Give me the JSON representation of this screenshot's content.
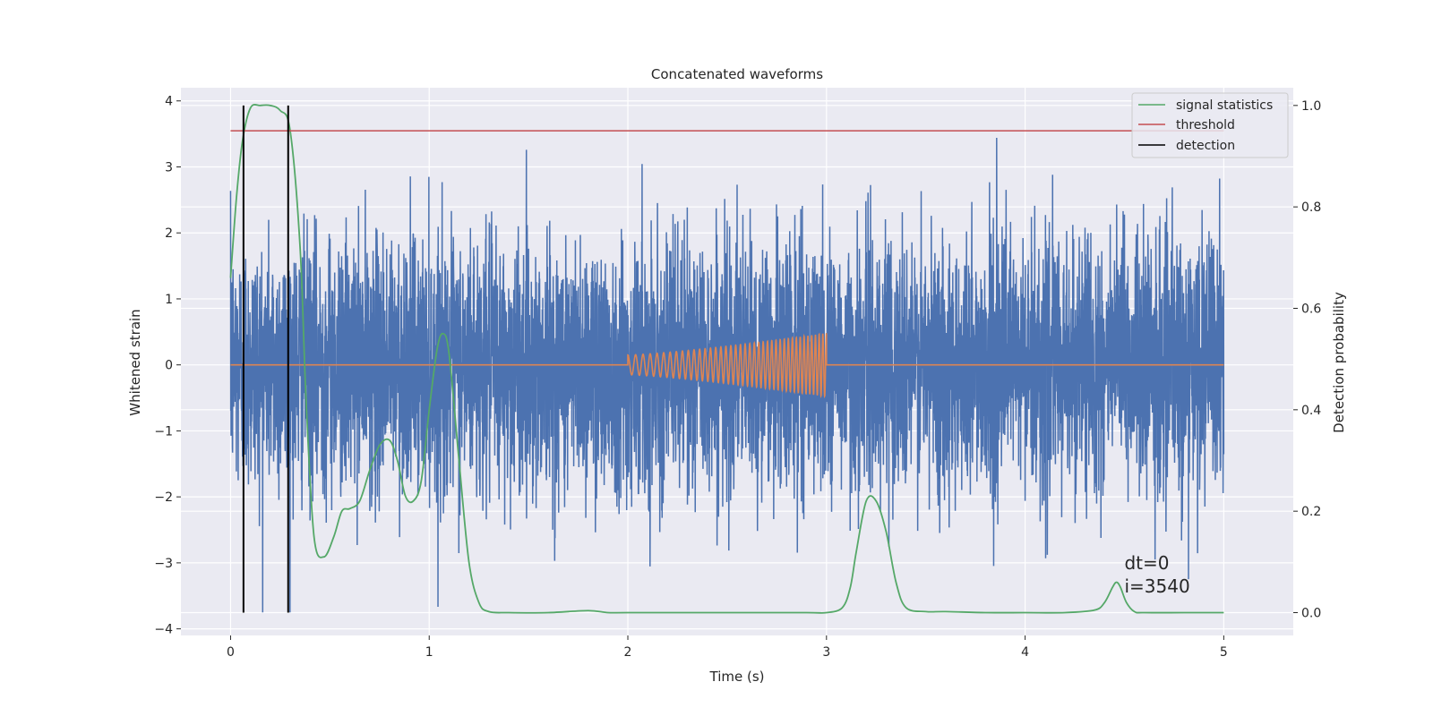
{
  "chart_data": {
    "type": "line",
    "title": "Concatenated waveforms",
    "xlabel": "Time (s)",
    "ylabel": "Whitened strain",
    "y2label": "Detection probability",
    "xlim": [
      -0.25,
      5.35
    ],
    "ylim": [
      -4.1,
      4.2
    ],
    "y2lim": [
      -0.045,
      1.035
    ],
    "xticks": [
      0,
      1,
      2,
      3,
      4,
      5
    ],
    "yticks": [
      -4,
      -3,
      -2,
      -1,
      0,
      1,
      2,
      3,
      4
    ],
    "y2ticks": [
      0.0,
      0.2,
      0.4,
      0.6,
      0.8,
      1.0
    ],
    "xtick_labels": [
      "0",
      "1",
      "2",
      "3",
      "4",
      "5"
    ],
    "ytick_labels": [
      "−4",
      "−3",
      "−2",
      "−1",
      "0",
      "1",
      "2",
      "3",
      "4"
    ],
    "y2tick_labels": [
      "0.0",
      "0.2",
      "0.4",
      "0.6",
      "0.8",
      "1.0"
    ],
    "grid": true,
    "legend_position": "top-right",
    "legend": [
      {
        "label": "signal statistics",
        "color": "#55a868"
      },
      {
        "label": "threshold",
        "color": "#c44e52"
      },
      {
        "label": "detection",
        "color": "#000000"
      }
    ],
    "noise": {
      "name": "whitened strain",
      "color": "#4c72b0",
      "x_range": [
        0,
        5
      ],
      "std": 1.0,
      "peak_max": 3.78,
      "peak_min": -3.75
    },
    "injection": {
      "name": "injected waveform",
      "color": "#dd8452",
      "t_start": 2.0,
      "t_end": 3.0,
      "amp_start": 0.15,
      "amp_end": 0.48,
      "freq_start": 25,
      "freq_end": 55
    },
    "threshold": {
      "value": 0.95,
      "x": [
        0,
        5
      ]
    },
    "detections": [
      0.065,
      0.29
    ],
    "detection_y2_range": [
      0.0,
      1.0
    ],
    "signal_statistics": {
      "x": [
        0,
        0.03,
        0.06,
        0.1,
        0.15,
        0.2,
        0.25,
        0.3,
        0.35,
        0.38,
        0.42,
        0.47,
        0.52,
        0.56,
        0.6,
        0.65,
        0.7,
        0.75,
        0.8,
        0.84,
        0.88,
        0.92,
        0.96,
        1.0,
        1.04,
        1.07,
        1.1,
        1.15,
        1.2,
        1.25,
        1.3,
        1.4,
        1.6,
        1.8,
        1.9,
        2.0,
        2.5,
        2.9,
        3.0,
        3.08,
        3.12,
        3.15,
        3.2,
        3.25,
        3.3,
        3.35,
        3.4,
        3.5,
        3.6,
        3.8,
        4.0,
        4.2,
        4.35,
        4.4,
        4.44,
        4.46,
        4.48,
        4.51,
        4.55,
        4.6,
        4.8,
        5.0
      ],
      "y": [
        0.66,
        0.82,
        0.93,
        0.995,
        1.0,
        1.0,
        0.99,
        0.95,
        0.72,
        0.42,
        0.15,
        0.11,
        0.15,
        0.2,
        0.205,
        0.22,
        0.28,
        0.33,
        0.34,
        0.3,
        0.23,
        0.22,
        0.26,
        0.4,
        0.52,
        0.55,
        0.51,
        0.3,
        0.1,
        0.02,
        0.002,
        0.0,
        0.0,
        0.004,
        0.0,
        0.0,
        0.0,
        0.0,
        0.0,
        0.01,
        0.05,
        0.12,
        0.22,
        0.22,
        0.16,
        0.06,
        0.01,
        0.002,
        0.002,
        0.0,
        0.0,
        0.0,
        0.005,
        0.02,
        0.05,
        0.06,
        0.05,
        0.02,
        0.002,
        0.0,
        0.0,
        0.0
      ]
    },
    "annotations": [
      "dt=0",
      "i=3540"
    ],
    "annotation_position": [
      4.5,
      -3.0
    ]
  }
}
